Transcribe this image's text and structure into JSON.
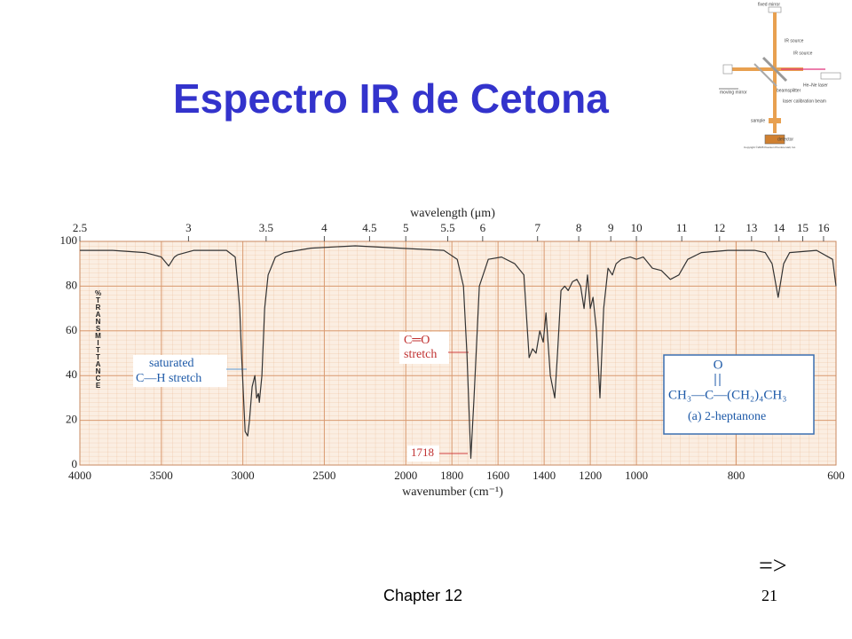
{
  "title": "Espectro IR de Cetona",
  "footer": "Chapter 12",
  "page_number": "21",
  "next_arrow": "=>",
  "diagram": {
    "labels": [
      "fixed mirror",
      "IR source",
      "IR source",
      "moving mirror",
      "beamsplitter",
      "He–Ne laser",
      "laser calibration beam",
      "sample",
      "detector",
      "Copyright ©2005 Pearson Prentice Hall, Inc."
    ]
  },
  "chart_data": {
    "type": "line",
    "xlabel": "wavenumber (cm⁻¹)",
    "x2label": "wavelength (μm)",
    "ylabel": "%TRANSMITTANCE",
    "xlim": [
      4000,
      600
    ],
    "xscale_breaks": [
      2000,
      1000
    ],
    "xticks": [
      4000,
      3500,
      3000,
      2500,
      2000,
      1800,
      1600,
      1400,
      1200,
      1000,
      800,
      600
    ],
    "x2ticks": [
      2.5,
      3,
      3.5,
      4,
      4.5,
      5,
      5.5,
      6,
      7,
      8,
      9,
      10,
      11,
      12,
      13,
      14,
      15,
      16
    ],
    "ylim": [
      0,
      100
    ],
    "yticks": [
      0,
      20,
      40,
      60,
      80,
      100
    ],
    "grid": true,
    "color": "#333333",
    "x": [
      4000,
      3800,
      3600,
      3500,
      3455,
      3420,
      3400,
      3300,
      3100,
      3047,
      3030,
      3019,
      3008,
      2986,
      2970,
      2959,
      2943,
      2926,
      2915,
      2904,
      2899,
      2883,
      2866,
      2845,
      2800,
      2746,
      2583,
      2310,
      2038,
      1835,
      1777,
      1750,
      1735,
      1718,
      1704,
      1681,
      1642,
      1585,
      1527,
      1488,
      1465,
      1450,
      1435,
      1419,
      1404,
      1392,
      1373,
      1354,
      1342,
      1327,
      1311,
      1296,
      1277,
      1258,
      1242,
      1227,
      1212,
      1200,
      1188,
      1173,
      1158,
      1142,
      1123,
      1104,
      1088,
      1065,
      1027,
      1000,
      986,
      968,
      950,
      932,
      915,
      897,
      870,
      817,
      763,
      742,
      728,
      716,
      705,
      693,
      639,
      607,
      600
    ],
    "values": [
      96,
      96,
      95,
      93,
      89,
      93,
      94,
      96,
      96,
      93,
      80,
      70,
      50,
      15,
      13,
      20,
      35,
      40,
      30,
      32,
      28,
      40,
      70,
      85,
      93,
      95,
      97,
      98,
      97,
      96,
      92,
      80,
      50,
      3,
      30,
      80,
      92,
      93,
      90,
      85,
      48,
      52,
      50,
      60,
      55,
      68,
      40,
      30,
      50,
      78,
      80,
      78,
      82,
      83,
      80,
      70,
      85,
      70,
      75,
      60,
      30,
      70,
      88,
      85,
      90,
      92,
      93,
      92,
      93,
      88,
      87,
      83,
      85,
      92,
      95,
      96,
      96,
      95,
      90,
      75,
      90,
      95,
      96,
      92,
      80
    ],
    "annotations": [
      "saturated",
      "C—H stretch",
      "C═O",
      "stretch",
      "1718"
    ],
    "structure": {
      "atom": "O",
      "formula": "CH₃—C—(CH₂)₄CH₃",
      "name": "(a) 2-heptanone"
    }
  }
}
